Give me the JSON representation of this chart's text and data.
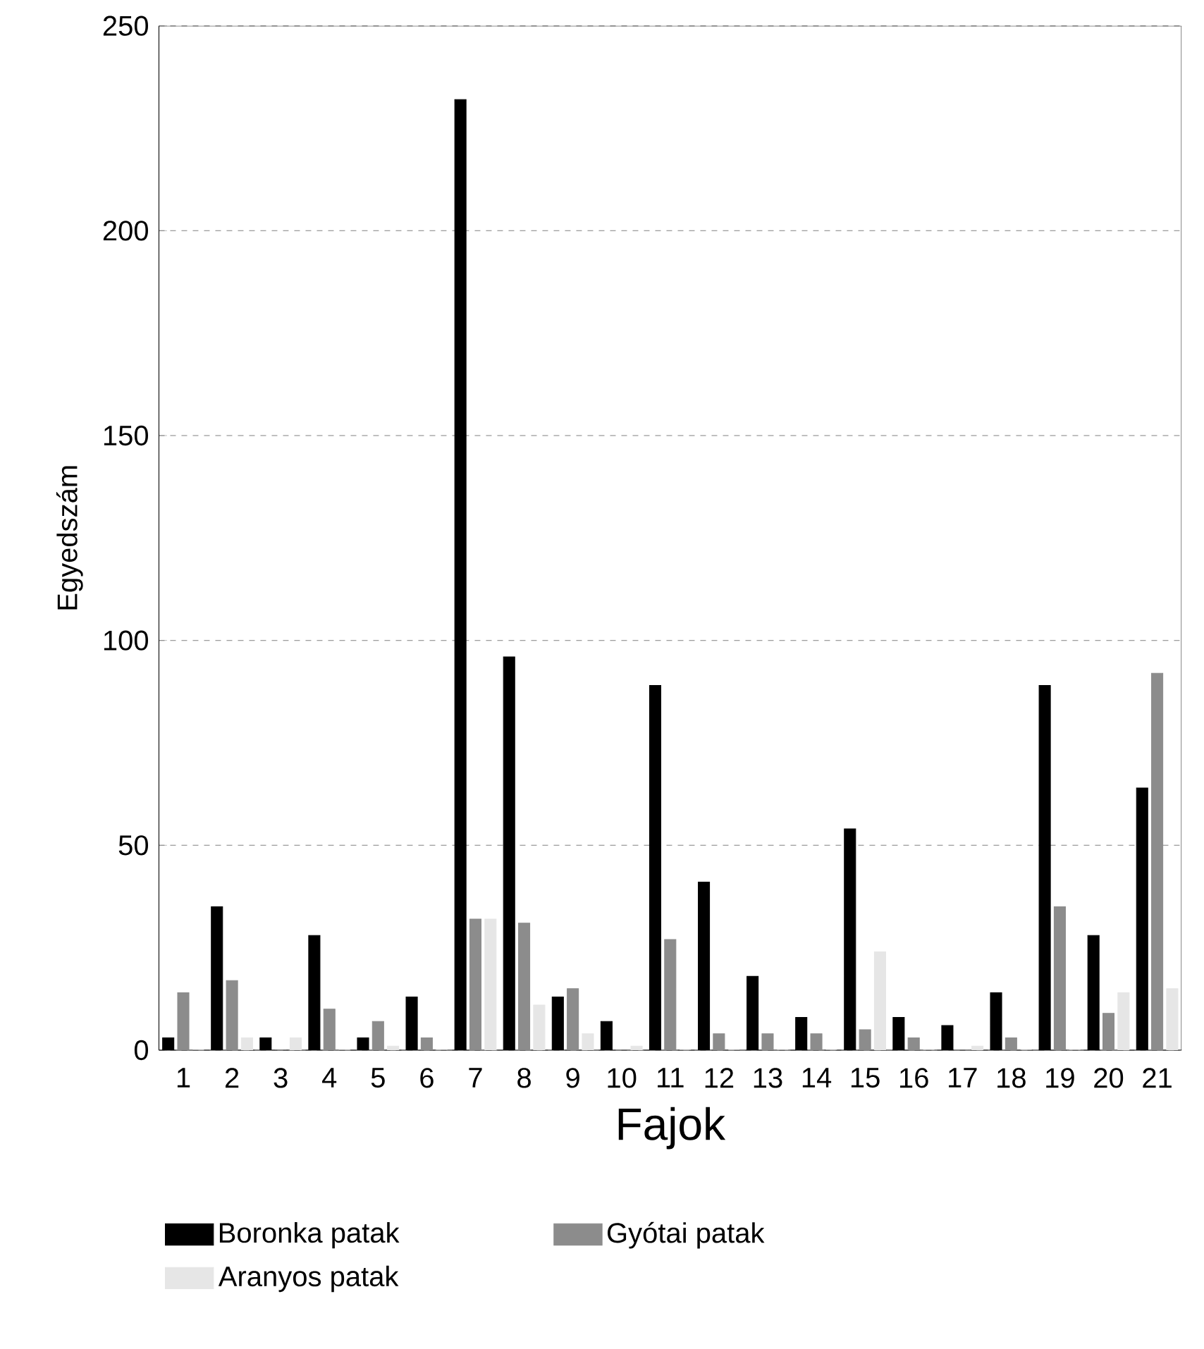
{
  "chart_data": {
    "type": "bar",
    "xlabel": "Fajok",
    "ylabel": "Egyedszám",
    "categories": [
      "1",
      "2",
      "3",
      "4",
      "5",
      "6",
      "7",
      "8",
      "9",
      "10",
      "11",
      "12",
      "13",
      "14",
      "15",
      "16",
      "17",
      "18",
      "19",
      "20",
      "21"
    ],
    "series": [
      {
        "name": "Boronka patak",
        "color": "#000000",
        "values": [
          3,
          35,
          3,
          28,
          3,
          13,
          232,
          96,
          13,
          7,
          89,
          41,
          18,
          8,
          54,
          8,
          6,
          14,
          89,
          28,
          64
        ]
      },
      {
        "name": "Gyótai  patak",
        "color": "#8c8c8c",
        "values": [
          14,
          17,
          0,
          10,
          7,
          3,
          32,
          31,
          15,
          0,
          27,
          4,
          4,
          4,
          5,
          3,
          0,
          3,
          35,
          9,
          92
        ]
      },
      {
        "name": "Aranyos patak",
        "color": "#e6e6e6",
        "values": [
          0,
          3,
          3,
          0,
          1,
          0,
          32,
          11,
          4,
          1,
          0,
          0,
          0,
          0,
          24,
          0,
          1,
          0,
          0,
          14,
          15
        ]
      }
    ],
    "ylim": [
      0,
      250
    ],
    "yticks": [
      0,
      50,
      100,
      150,
      200,
      250
    ],
    "grid": "y",
    "legend": "bottom"
  }
}
